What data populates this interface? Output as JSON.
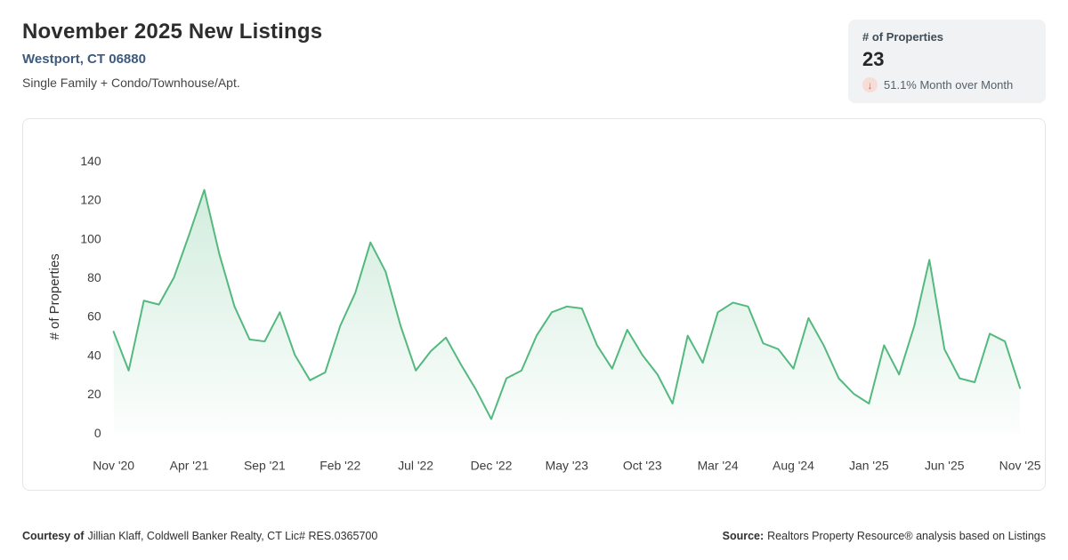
{
  "header": {
    "title": "November 2025 New Listings",
    "location": "Westport, CT 06880",
    "property_types": "Single Family + Condo/Townhouse/Apt."
  },
  "stat_card": {
    "label": "# of Properties",
    "value": "23",
    "direction": "down",
    "change": "51.1% Month over Month",
    "arrow_glyph": "↓"
  },
  "footer": {
    "courtesy_label": "Courtesy of",
    "courtesy_text": "Jillian Klaff, Coldwell Banker Realty, CT Lic# RES.0365700",
    "source_label": "Source:",
    "source_text": "Realtors Property Resource® analysis based on Listings"
  },
  "colors": {
    "accent_green": "#53b97f",
    "location_blue": "#3d5a7d",
    "negative_red": "#dd5b47",
    "card_gray": "#f0f2f3"
  },
  "chart_data": {
    "type": "area",
    "title": "November 2025 New Listings",
    "xlabel": "",
    "ylabel": "# of Properties",
    "ylim": [
      0,
      140
    ],
    "yticks": [
      0,
      20,
      40,
      60,
      80,
      100,
      120,
      140
    ],
    "grid": false,
    "legend": false,
    "x_tick_labels": [
      "Nov '20",
      "Apr '21",
      "Sep '21",
      "Feb '22",
      "Jul '22",
      "Dec '22",
      "May '23",
      "Oct '23",
      "Mar '24",
      "Aug '24",
      "Jan '25",
      "Jun '25",
      "Nov '25"
    ],
    "x_tick_every": 5,
    "x": [
      "Nov '20",
      "Dec '20",
      "Jan '21",
      "Feb '21",
      "Mar '21",
      "Apr '21",
      "May '21",
      "Jun '21",
      "Jul '21",
      "Aug '21",
      "Sep '21",
      "Oct '21",
      "Nov '21",
      "Dec '21",
      "Jan '22",
      "Feb '22",
      "Mar '22",
      "Apr '22",
      "May '22",
      "Jun '22",
      "Jul '22",
      "Aug '22",
      "Sep '22",
      "Oct '22",
      "Nov '22",
      "Dec '22",
      "Jan '23",
      "Feb '23",
      "Mar '23",
      "Apr '23",
      "May '23",
      "Jun '23",
      "Jul '23",
      "Aug '23",
      "Sep '23",
      "Oct '23",
      "Nov '23",
      "Dec '23",
      "Jan '24",
      "Feb '24",
      "Mar '24",
      "Apr '24",
      "May '24",
      "Jun '24",
      "Jul '24",
      "Aug '24",
      "Sep '24",
      "Oct '24",
      "Nov '24",
      "Dec '24",
      "Jan '25",
      "Feb '25",
      "Mar '25",
      "Apr '25",
      "May '25",
      "Jun '25",
      "Jul '25",
      "Aug '25",
      "Sep '25",
      "Oct '25",
      "Nov '25"
    ],
    "series": [
      {
        "name": "# of Properties",
        "values": [
          52,
          32,
          68,
          66,
          80,
          102,
          125,
          92,
          65,
          48,
          47,
          62,
          40,
          27,
          31,
          55,
          72,
          98,
          83,
          55,
          32,
          42,
          49,
          35,
          22,
          7,
          28,
          32,
          50,
          62,
          65,
          64,
          45,
          33,
          53,
          40,
          30,
          15,
          50,
          36,
          62,
          67,
          65,
          46,
          43,
          33,
          59,
          45,
          28,
          20,
          15,
          45,
          30,
          55,
          89,
          43,
          28,
          26,
          51,
          47,
          23
        ]
      }
    ],
    "line_color": "#53b97f",
    "fill_top": "rgba(83,185,127,0.26)",
    "fill_bottom": "rgba(83,185,127,0.02)"
  }
}
